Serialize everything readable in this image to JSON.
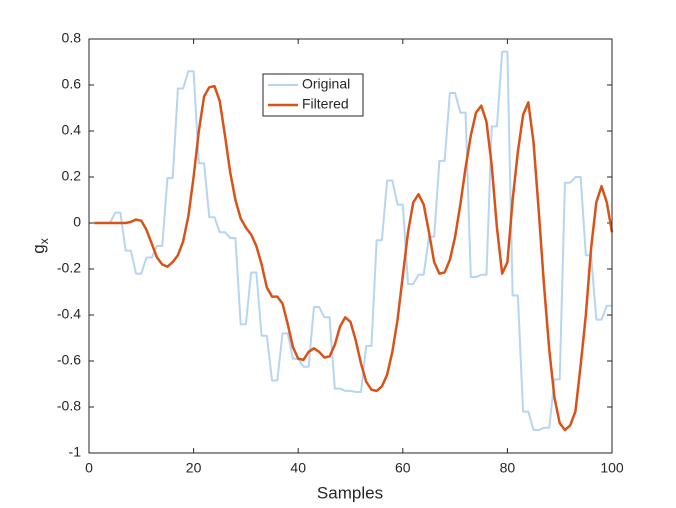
{
  "chart_data": {
    "type": "line",
    "xlabel": "Samples",
    "ylabel": "g",
    "ylabel_subscript": "x",
    "x": [
      1,
      2,
      3,
      4,
      5,
      6,
      7,
      8,
      9,
      10,
      11,
      12,
      13,
      14,
      15,
      16,
      17,
      18,
      19,
      20,
      21,
      22,
      23,
      24,
      25,
      26,
      27,
      28,
      29,
      30,
      31,
      32,
      33,
      34,
      35,
      36,
      37,
      38,
      39,
      40,
      41,
      42,
      43,
      44,
      45,
      46,
      47,
      48,
      49,
      50,
      51,
      52,
      53,
      54,
      55,
      56,
      57,
      58,
      59,
      60,
      61,
      62,
      63,
      64,
      65,
      66,
      67,
      68,
      69,
      70,
      71,
      72,
      73,
      74,
      75,
      76,
      77,
      78,
      79,
      80,
      81,
      82,
      83,
      84,
      85,
      86,
      87,
      88,
      89,
      90,
      91,
      92,
      93,
      94,
      95,
      96,
      97,
      98,
      99,
      100
    ],
    "series": [
      {
        "name": "Original",
        "color": "#b7d5f0",
        "width": 2,
        "values": [
          0,
          0,
          0,
          0,
          0.045,
          0.045,
          -0.12,
          -0.12,
          -0.22,
          -0.22,
          -0.15,
          -0.15,
          -0.1,
          -0.1,
          0.195,
          0.195,
          0.585,
          0.585,
          0.66,
          0.66,
          0.26,
          0.26,
          0.025,
          0.025,
          -0.04,
          -0.04,
          -0.065,
          -0.065,
          -0.44,
          -0.44,
          -0.215,
          -0.215,
          -0.49,
          -0.49,
          -0.685,
          -0.685,
          -0.48,
          -0.48,
          -0.59,
          -0.59,
          -0.625,
          -0.625,
          -0.365,
          -0.365,
          -0.41,
          -0.41,
          -0.72,
          -0.72,
          -0.73,
          -0.73,
          -0.735,
          -0.735,
          -0.535,
          -0.535,
          -0.075,
          -0.075,
          0.185,
          0.185,
          0.08,
          0.08,
          -0.265,
          -0.265,
          -0.225,
          -0.225,
          -0.06,
          -0.06,
          0.27,
          0.27,
          0.565,
          0.565,
          0.48,
          0.48,
          -0.235,
          -0.235,
          -0.225,
          -0.225,
          0.42,
          0.42,
          0.745,
          0.745,
          -0.315,
          -0.315,
          -0.82,
          -0.82,
          -0.9,
          -0.9,
          -0.89,
          -0.89,
          -0.68,
          -0.68,
          0.175,
          0.175,
          0.2,
          0.2,
          -0.14,
          -0.14,
          -0.42,
          -0.42,
          -0.36,
          -0.36
        ]
      },
      {
        "name": "Filtered",
        "color": "#d95319",
        "width": 2.5,
        "values": [
          0,
          0,
          0,
          0,
          0,
          0,
          0,
          0.005,
          0.015,
          0.01,
          -0.03,
          -0.09,
          -0.15,
          -0.18,
          -0.19,
          -0.17,
          -0.14,
          -0.08,
          0.03,
          0.2,
          0.4,
          0.55,
          0.59,
          0.595,
          0.53,
          0.38,
          0.22,
          0.1,
          0.02,
          -0.02,
          -0.05,
          -0.1,
          -0.18,
          -0.28,
          -0.32,
          -0.32,
          -0.35,
          -0.44,
          -0.54,
          -0.59,
          -0.595,
          -0.56,
          -0.545,
          -0.56,
          -0.585,
          -0.58,
          -0.53,
          -0.45,
          -0.41,
          -0.43,
          -0.51,
          -0.61,
          -0.69,
          -0.725,
          -0.73,
          -0.71,
          -0.66,
          -0.56,
          -0.42,
          -0.23,
          -0.04,
          0.09,
          0.125,
          0.08,
          -0.04,
          -0.17,
          -0.22,
          -0.215,
          -0.16,
          -0.06,
          0.08,
          0.24,
          0.38,
          0.48,
          0.51,
          0.44,
          0.25,
          -0.02,
          -0.22,
          -0.17,
          0.1,
          0.31,
          0.47,
          0.525,
          0.35,
          0.05,
          -0.27,
          -0.55,
          -0.76,
          -0.87,
          -0.9,
          -0.88,
          -0.82,
          -0.62,
          -0.4,
          -0.11,
          0.09,
          0.16,
          0.09,
          -0.04
        ]
      }
    ],
    "xlim": [
      0,
      100
    ],
    "xticks": [
      0,
      20,
      40,
      60,
      80,
      100
    ],
    "ylim": [
      -1,
      0.8
    ],
    "yticks": [
      -1,
      -0.8,
      -0.6,
      -0.4,
      -0.2,
      0,
      0.2,
      0.4,
      0.6,
      0.8
    ],
    "grid": false,
    "legend": "north"
  }
}
